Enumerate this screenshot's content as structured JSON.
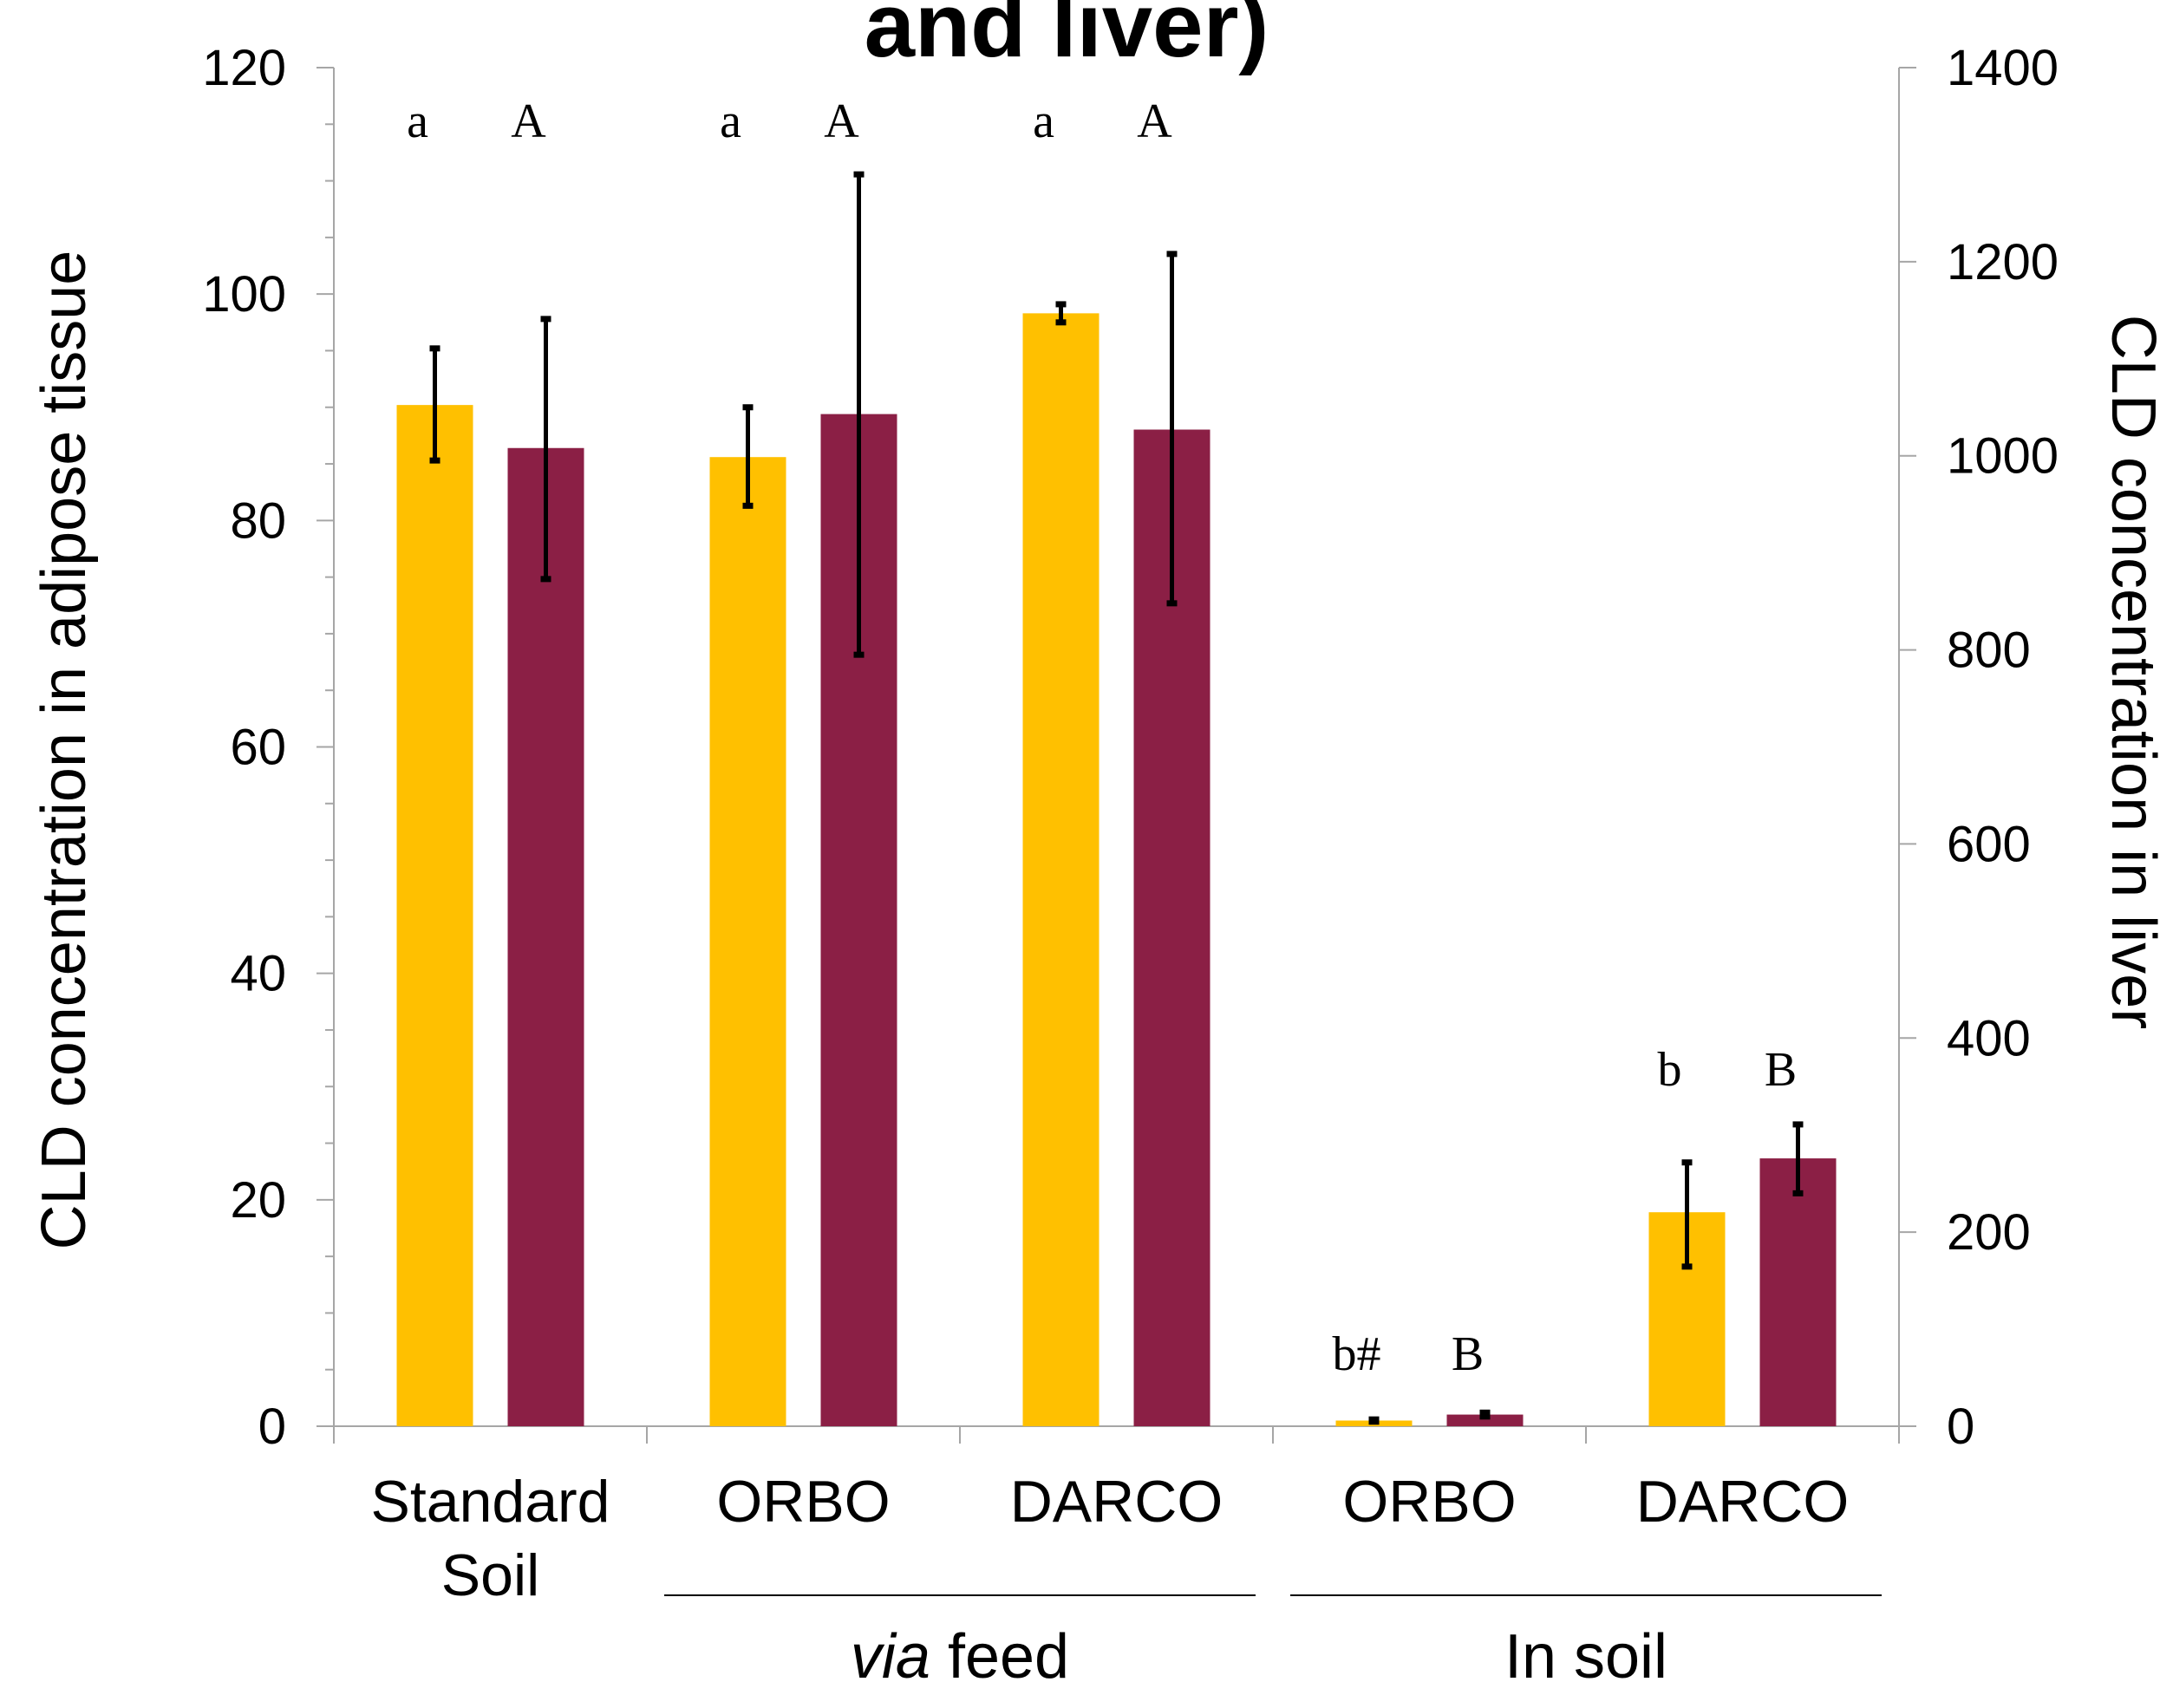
{
  "chart_data": {
    "type": "bar",
    "title": "and liver)",
    "ylabel_left": "CLD concentration in adipose tissue",
    "ylabel_right": "CLD concentration in liver",
    "ylim_left": [
      0,
      120
    ],
    "ylim_right": [
      0,
      1400
    ],
    "yticks_left": [
      "0",
      "20",
      "40",
      "60",
      "80",
      "100",
      "120"
    ],
    "yticks_right": [
      "0",
      "200",
      "400",
      "600",
      "800",
      "1000",
      "1200",
      "1400"
    ],
    "categories": [
      {
        "lines": [
          "Standard",
          "Soil"
        ]
      },
      {
        "lines": [
          "ORBO"
        ]
      },
      {
        "lines": [
          "DARCO"
        ]
      },
      {
        "lines": [
          "ORBO"
        ]
      },
      {
        "lines": [
          "DARCO"
        ]
      }
    ],
    "groups": [
      {
        "label_italic": "via",
        "label_rest": " feed",
        "from": 1,
        "to": 2
      },
      {
        "label_italic": "",
        "label_rest": "In soil",
        "from": 3,
        "to": 4
      }
    ],
    "colors": {
      "adipose": "#ffc000",
      "liver": "#8b1f45",
      "error": "#000000",
      "axis": "#a6a6a6"
    },
    "series": [
      {
        "axis": "left",
        "values": [
          90.2,
          85.6,
          98.3,
          0.5,
          18.9
        ],
        "err_low": [
          85.3,
          81.3,
          97.5,
          0.4,
          14.1
        ],
        "err_high": [
          95.2,
          90.0,
          99.1,
          0.6,
          23.3
        ],
        "letters": [
          "a",
          "a",
          "a",
          "b#",
          "b"
        ]
      },
      {
        "axis": "right",
        "values": [
          1008,
          1043,
          1027,
          12,
          276
        ],
        "err_low": [
          873,
          795,
          848,
          10,
          240
        ],
        "err_high": [
          1141,
          1290,
          1208,
          14,
          311
        ],
        "letters": [
          "A",
          "A",
          "A",
          "B",
          "B"
        ]
      }
    ]
  }
}
